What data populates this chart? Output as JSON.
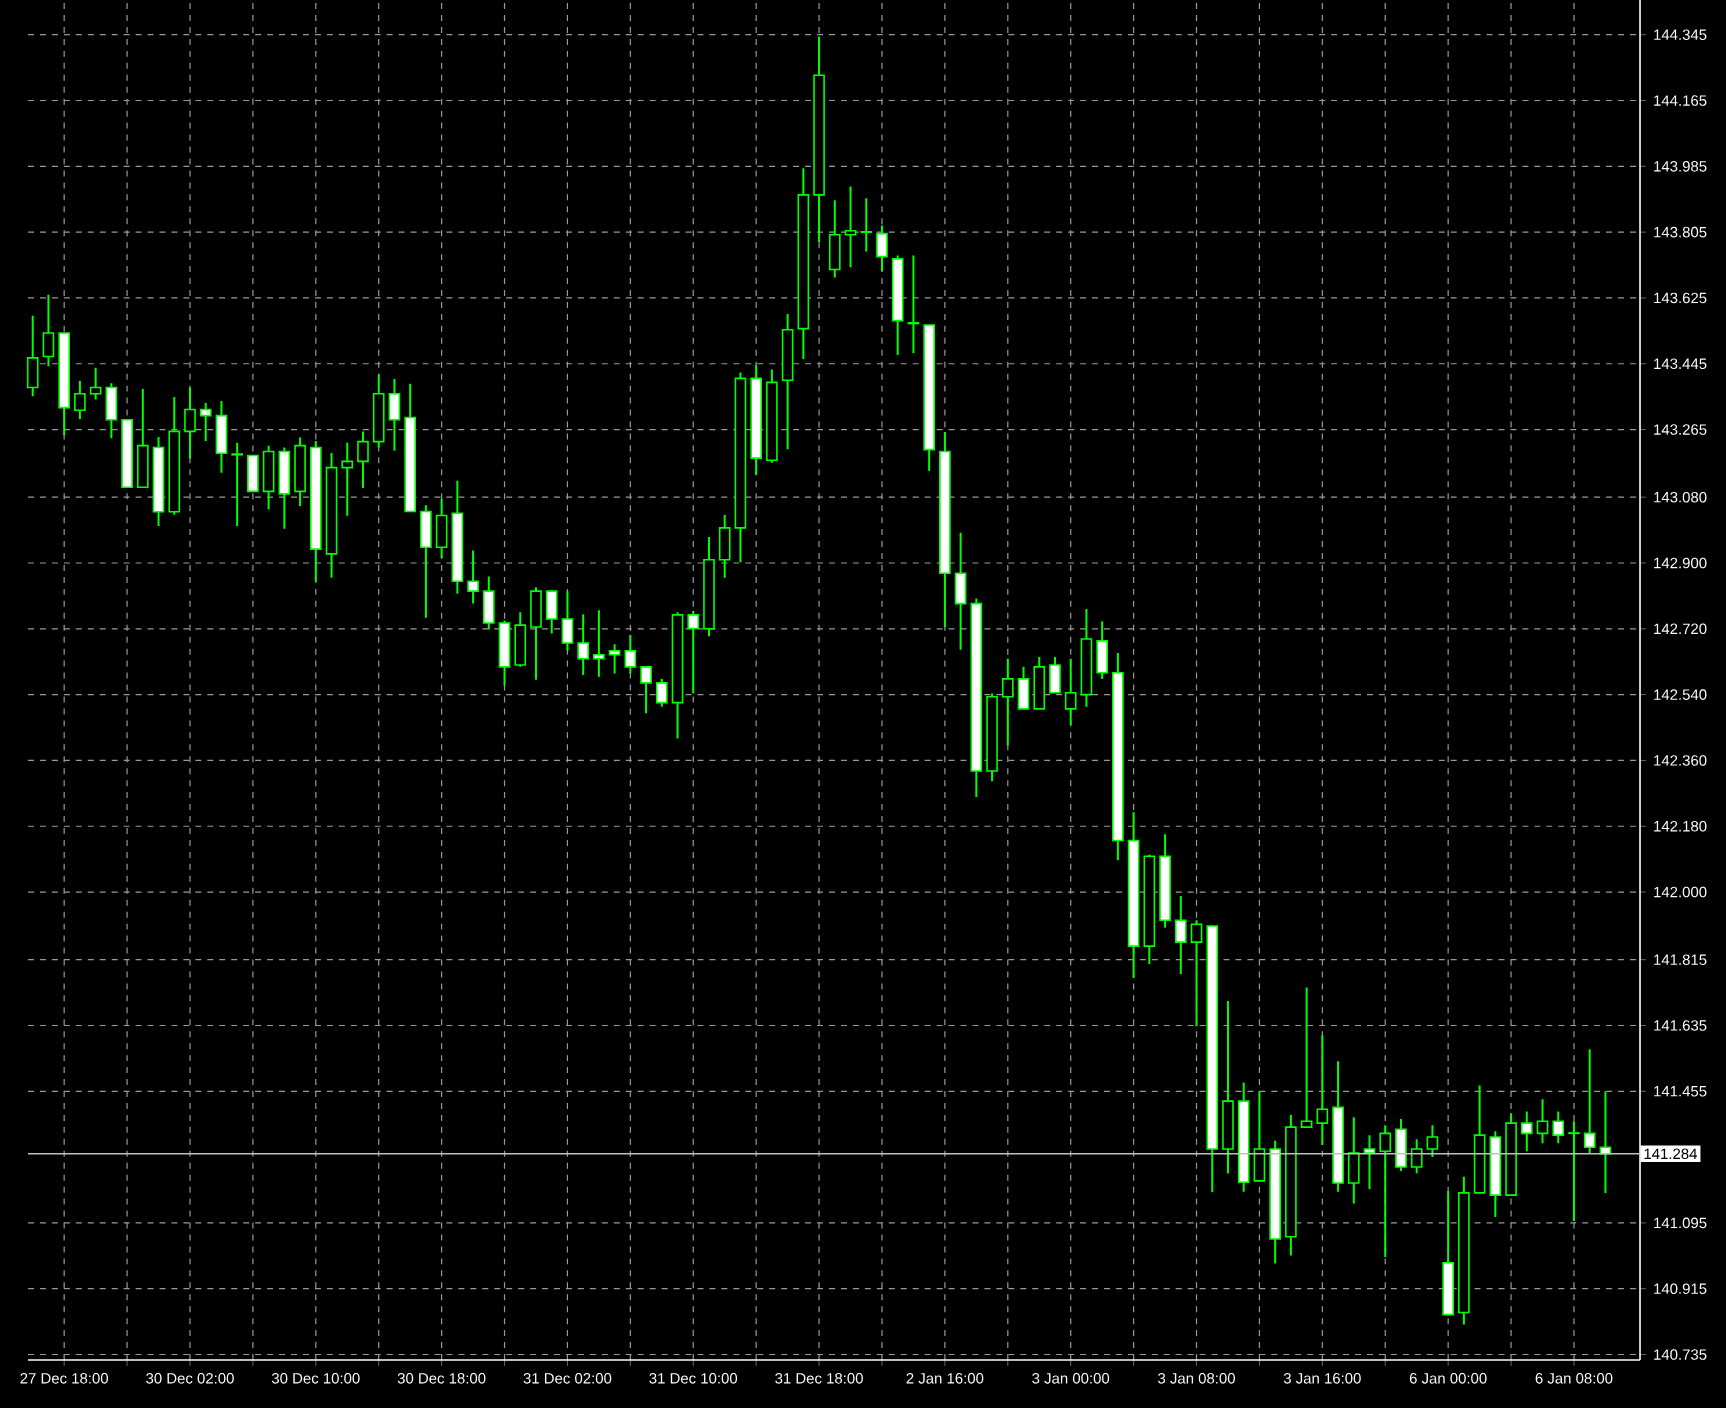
{
  "chart_data": {
    "type": "candlestick",
    "categories": [
      null,
      null,
      "27 Dec 18:00",
      null,
      null,
      null,
      null,
      null,
      null,
      null,
      "30 Dec 02:00",
      null,
      null,
      null,
      null,
      null,
      null,
      null,
      "30 Dec 10:00",
      null,
      null,
      null,
      null,
      null,
      null,
      null,
      "30 Dec 18:00",
      null,
      null,
      null,
      null,
      null,
      null,
      null,
      "31 Dec 02:00",
      null,
      null,
      null,
      null,
      null,
      null,
      null,
      "31 Dec 10:00",
      null,
      null,
      null,
      null,
      null,
      null,
      null,
      "31 Dec 18:00",
      null,
      null,
      null,
      null,
      null,
      null,
      null,
      "2 Jan 16:00",
      null,
      null,
      null,
      null,
      null,
      null,
      null,
      "3 Jan 00:00",
      null,
      null,
      null,
      null,
      null,
      null,
      null,
      "3 Jan 08:00",
      null,
      null,
      null,
      null,
      null,
      null,
      null,
      "3 Jan 16:00",
      null,
      null,
      null,
      null,
      null,
      null,
      null,
      "6 Jan 00:00",
      null,
      null,
      null,
      null,
      null,
      null,
      null,
      "6 Jan 08:00",
      null,
      null
    ],
    "ohlc": [
      [
        143.38,
        143.576,
        143.356,
        143.461
      ],
      [
        143.465,
        143.634,
        143.438,
        143.529
      ],
      [
        143.529,
        143.529,
        143.249,
        143.325
      ],
      [
        143.318,
        143.398,
        143.294,
        143.363
      ],
      [
        143.363,
        143.434,
        143.347,
        143.38
      ],
      [
        143.38,
        143.392,
        143.241,
        143.292
      ],
      [
        143.292,
        143.292,
        143.107,
        143.107
      ],
      [
        143.107,
        143.376,
        143.107,
        143.221
      ],
      [
        143.216,
        143.245,
        143.001,
        143.04
      ],
      [
        143.04,
        143.354,
        143.032,
        143.26
      ],
      [
        143.26,
        143.38,
        143.185,
        143.32
      ],
      [
        143.32,
        143.338,
        143.234,
        143.303
      ],
      [
        143.303,
        143.343,
        143.147,
        143.2
      ],
      [
        143.198,
        143.229,
        143.001,
        143.196
      ],
      [
        143.194,
        143.194,
        143.096,
        143.096
      ],
      [
        143.096,
        143.221,
        143.047,
        143.205
      ],
      [
        143.205,
        143.216,
        142.994,
        143.089
      ],
      [
        143.096,
        143.243,
        143.056,
        143.221
      ],
      [
        143.216,
        143.234,
        142.849,
        142.938
      ],
      [
        142.925,
        143.201,
        142.86,
        143.161
      ],
      [
        143.161,
        143.229,
        143.029,
        143.178
      ],
      [
        143.178,
        143.26,
        143.105,
        143.232
      ],
      [
        143.232,
        143.416,
        143.216,
        143.363
      ],
      [
        143.363,
        143.403,
        143.207,
        143.292
      ],
      [
        143.298,
        143.39,
        143.04,
        143.041
      ],
      [
        143.041,
        143.058,
        142.75,
        142.943
      ],
      [
        142.943,
        143.076,
        142.914,
        143.03
      ],
      [
        143.036,
        143.125,
        142.816,
        142.85
      ],
      [
        142.85,
        142.934,
        142.789,
        142.823
      ],
      [
        142.823,
        142.863,
        142.718,
        142.736
      ],
      [
        142.736,
        142.743,
        142.565,
        142.616
      ],
      [
        142.621,
        142.765,
        142.616,
        142.73
      ],
      [
        142.725,
        142.834,
        142.581,
        142.823
      ],
      [
        142.823,
        142.825,
        142.707,
        142.747
      ],
      [
        142.747,
        142.823,
        142.66,
        142.681
      ],
      [
        142.681,
        142.76,
        142.594,
        142.638
      ],
      [
        142.649,
        142.771,
        142.589,
        142.638
      ],
      [
        142.66,
        142.678,
        142.598,
        142.649
      ],
      [
        142.66,
        142.703,
        142.598,
        142.616
      ],
      [
        142.616,
        142.616,
        142.489,
        142.572
      ],
      [
        142.572,
        142.583,
        142.507,
        142.518
      ],
      [
        142.518,
        142.765,
        142.42,
        142.758
      ],
      [
        142.758,
        142.769,
        142.543,
        142.721
      ],
      [
        142.72,
        142.971,
        142.7,
        142.909
      ],
      [
        142.909,
        143.031,
        142.86,
        142.996
      ],
      [
        142.996,
        143.421,
        142.902,
        143.405
      ],
      [
        143.405,
        143.441,
        143.141,
        143.187
      ],
      [
        143.181,
        143.429,
        143.174,
        143.394
      ],
      [
        143.4,
        143.581,
        143.211,
        143.538
      ],
      [
        143.541,
        143.98,
        143.458,
        143.907
      ],
      [
        143.907,
        144.34,
        143.778,
        144.234
      ],
      [
        143.703,
        143.892,
        143.681,
        143.798
      ],
      [
        143.798,
        143.93,
        143.709,
        143.809
      ],
      [
        143.806,
        143.898,
        143.752,
        143.805
      ],
      [
        143.801,
        143.823,
        143.698,
        143.738
      ],
      [
        143.732,
        143.741,
        143.469,
        143.563
      ],
      [
        143.557,
        143.741,
        143.474,
        143.555
      ],
      [
        143.551,
        143.551,
        143.152,
        143.21
      ],
      [
        143.205,
        143.258,
        142.725,
        142.872
      ],
      [
        142.872,
        142.983,
        142.663,
        142.789
      ],
      [
        142.789,
        142.803,
        142.26,
        142.331
      ],
      [
        142.331,
        142.543,
        142.303,
        142.534
      ],
      [
        142.534,
        142.638,
        142.401,
        142.583
      ],
      [
        142.583,
        142.616,
        142.501,
        142.501
      ],
      [
        142.501,
        142.643,
        142.501,
        142.616
      ],
      [
        142.621,
        142.643,
        142.545,
        142.545
      ],
      [
        142.501,
        142.638,
        142.456,
        142.545
      ],
      [
        142.54,
        142.774,
        142.507,
        142.692
      ],
      [
        142.687,
        142.741,
        142.583,
        142.6
      ],
      [
        142.6,
        142.654,
        142.087,
        142.141
      ],
      [
        142.141,
        142.218,
        141.765,
        141.852
      ],
      [
        141.852,
        142.103,
        141.803,
        142.098
      ],
      [
        142.098,
        142.158,
        141.902,
        141.923
      ],
      [
        141.923,
        141.989,
        141.776,
        141.863
      ],
      [
        141.863,
        141.923,
        141.633,
        141.912
      ],
      [
        141.907,
        141.907,
        141.179,
        141.297
      ],
      [
        141.297,
        141.702,
        141.23,
        141.428
      ],
      [
        141.428,
        141.479,
        141.18,
        141.206
      ],
      [
        141.21,
        141.455,
        141.208,
        141.297
      ],
      [
        141.297,
        141.32,
        140.984,
        141.051
      ],
      [
        141.057,
        141.39,
        141.006,
        141.357
      ],
      [
        141.357,
        141.739,
        141.355,
        141.373
      ],
      [
        141.368,
        141.608,
        141.308,
        141.406
      ],
      [
        141.411,
        141.537,
        141.18,
        141.204
      ],
      [
        141.204,
        141.384,
        141.148,
        141.286
      ],
      [
        141.297,
        141.335,
        141.188,
        141.286
      ],
      [
        141.291,
        141.362,
        141.002,
        141.34
      ],
      [
        141.351,
        141.379,
        141.237,
        141.248
      ],
      [
        141.248,
        141.324,
        141.231,
        141.297
      ],
      [
        141.297,
        141.362,
        141.275,
        141.33
      ],
      [
        140.986,
        141.182,
        140.842,
        140.844
      ],
      [
        140.85,
        141.221,
        140.817,
        141.177
      ],
      [
        141.177,
        141.471,
        141.177,
        141.335
      ],
      [
        141.33,
        141.346,
        141.111,
        141.171
      ],
      [
        141.171,
        141.395,
        141.171,
        141.368
      ],
      [
        141.368,
        141.4,
        141.291,
        141.34
      ],
      [
        141.34,
        141.433,
        141.313,
        141.373
      ],
      [
        141.373,
        141.4,
        141.313,
        141.335
      ],
      [
        141.341,
        141.373,
        141.1,
        141.34
      ],
      [
        141.34,
        141.57,
        141.286,
        141.302
      ],
      [
        141.302,
        141.455,
        141.177,
        141.284
      ]
    ],
    "color": "#00ff00",
    "colors": [
      "#000000",
      "#000000",
      "#ffffff",
      "#000000",
      "#000000",
      "#ffffff",
      "#ffffff",
      "#000000",
      "#ffffff",
      "#000000",
      "#000000",
      "#ffffff",
      "#ffffff",
      "#ffffff",
      "#ffffff",
      "#000000",
      "#ffffff",
      "#000000",
      "#ffffff",
      "#000000",
      "#000000",
      "#000000",
      "#000000",
      "#ffffff",
      "#ffffff",
      "#ffffff",
      "#000000",
      "#ffffff",
      "#ffffff",
      "#ffffff",
      "#ffffff",
      "#000000",
      "#000000",
      "#ffffff",
      "#ffffff",
      "#ffffff",
      "#ffffff",
      "#ffffff",
      "#ffffff",
      "#ffffff",
      "#ffffff",
      "#000000",
      "#ffffff",
      "#000000",
      "#000000",
      "#000000",
      "#ffffff",
      "#000000",
      "#000000",
      "#000000",
      "#000000",
      "#000000",
      "#000000",
      "#ffffff",
      "#ffffff",
      "#ffffff",
      "#ffffff",
      "#ffffff",
      "#ffffff",
      "#ffffff",
      "#ffffff",
      "#000000",
      "#000000",
      "#ffffff",
      "#000000",
      "#ffffff",
      "#000000",
      "#000000",
      "#ffffff",
      "#ffffff",
      "#ffffff",
      "#000000",
      "#ffffff",
      "#ffffff",
      "#000000",
      "#ffffff",
      "#000000",
      "#ffffff",
      "#000000",
      "#ffffff",
      "#000000",
      "#000000",
      "#000000",
      "#ffffff",
      "#000000",
      "#ffffff",
      "#000000",
      "#ffffff",
      "#000000",
      "#000000",
      "#ffffff",
      "#000000",
      "#000000",
      "#ffffff",
      "#000000",
      "#ffffff",
      "#000000",
      "#ffffff",
      "#ffffff",
      "#ffffff",
      "#ffffff"
    ],
    "ylim": [
      140.72,
      144.44
    ],
    "yticks": [
      144.345,
      144.165,
      143.985,
      143.805,
      143.625,
      143.445,
      143.265,
      {
        "value": 143.08,
        "label": "143.080"
      },
      {
        "value": 142.9,
        "label": "142.900"
      },
      {
        "value": 142.72,
        "label": "142.720"
      },
      {
        "value": 142.54,
        "label": "142.540"
      },
      {
        "value": 142.36,
        "label": "142.360"
      },
      {
        "value": 142.18,
        "label": "142.180"
      },
      {
        "value": 142.0,
        "label": "142.000"
      },
      141.815,
      141.635,
      141.455,
      141.095,
      140.915,
      140.735
    ],
    "grid": true,
    "ref_lines": [
      {
        "axis": "y",
        "value": 141.284,
        "label": "141.284",
        "color": "#c0c0c0"
      }
    ]
  }
}
